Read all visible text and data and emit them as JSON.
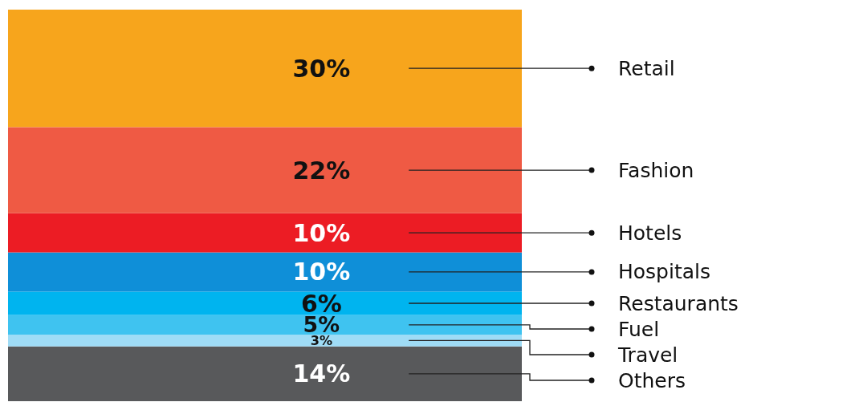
{
  "chart_data": {
    "type": "bar",
    "stacked": true,
    "categories": [
      null
    ],
    "legend": false,
    "series": [
      {
        "name": "Others",
        "color": "#58595b",
        "values": [
          14
        ],
        "value_labels": [
          "14%"
        ]
      },
      {
        "name": "Travel",
        "color": "#9fdcf6",
        "values": [
          3
        ],
        "value_labels": [
          "3%"
        ]
      },
      {
        "name": "Fuel",
        "color": "#3fc3f0",
        "values": [
          5
        ],
        "value_labels": [
          "5%"
        ]
      },
      {
        "name": "Restaurants",
        "color": "#00b4ef",
        "values": [
          6
        ],
        "value_labels": [
          "6%"
        ]
      },
      {
        "name": "Hospitals",
        "color": "#0f8fd8",
        "values": [
          10
        ],
        "value_labels": [
          "10%"
        ]
      },
      {
        "name": "Hotels",
        "color": "#ec1c24",
        "values": [
          10
        ],
        "value_labels": [
          "10%"
        ]
      },
      {
        "name": "Fashion",
        "color": "#ef5a44",
        "values": [
          22
        ],
        "value_labels": [
          "22%"
        ]
      },
      {
        "name": "Retail",
        "color": "#f7a51c",
        "values": [
          30
        ],
        "value_labels": [
          "30%"
        ]
      }
    ]
  }
}
